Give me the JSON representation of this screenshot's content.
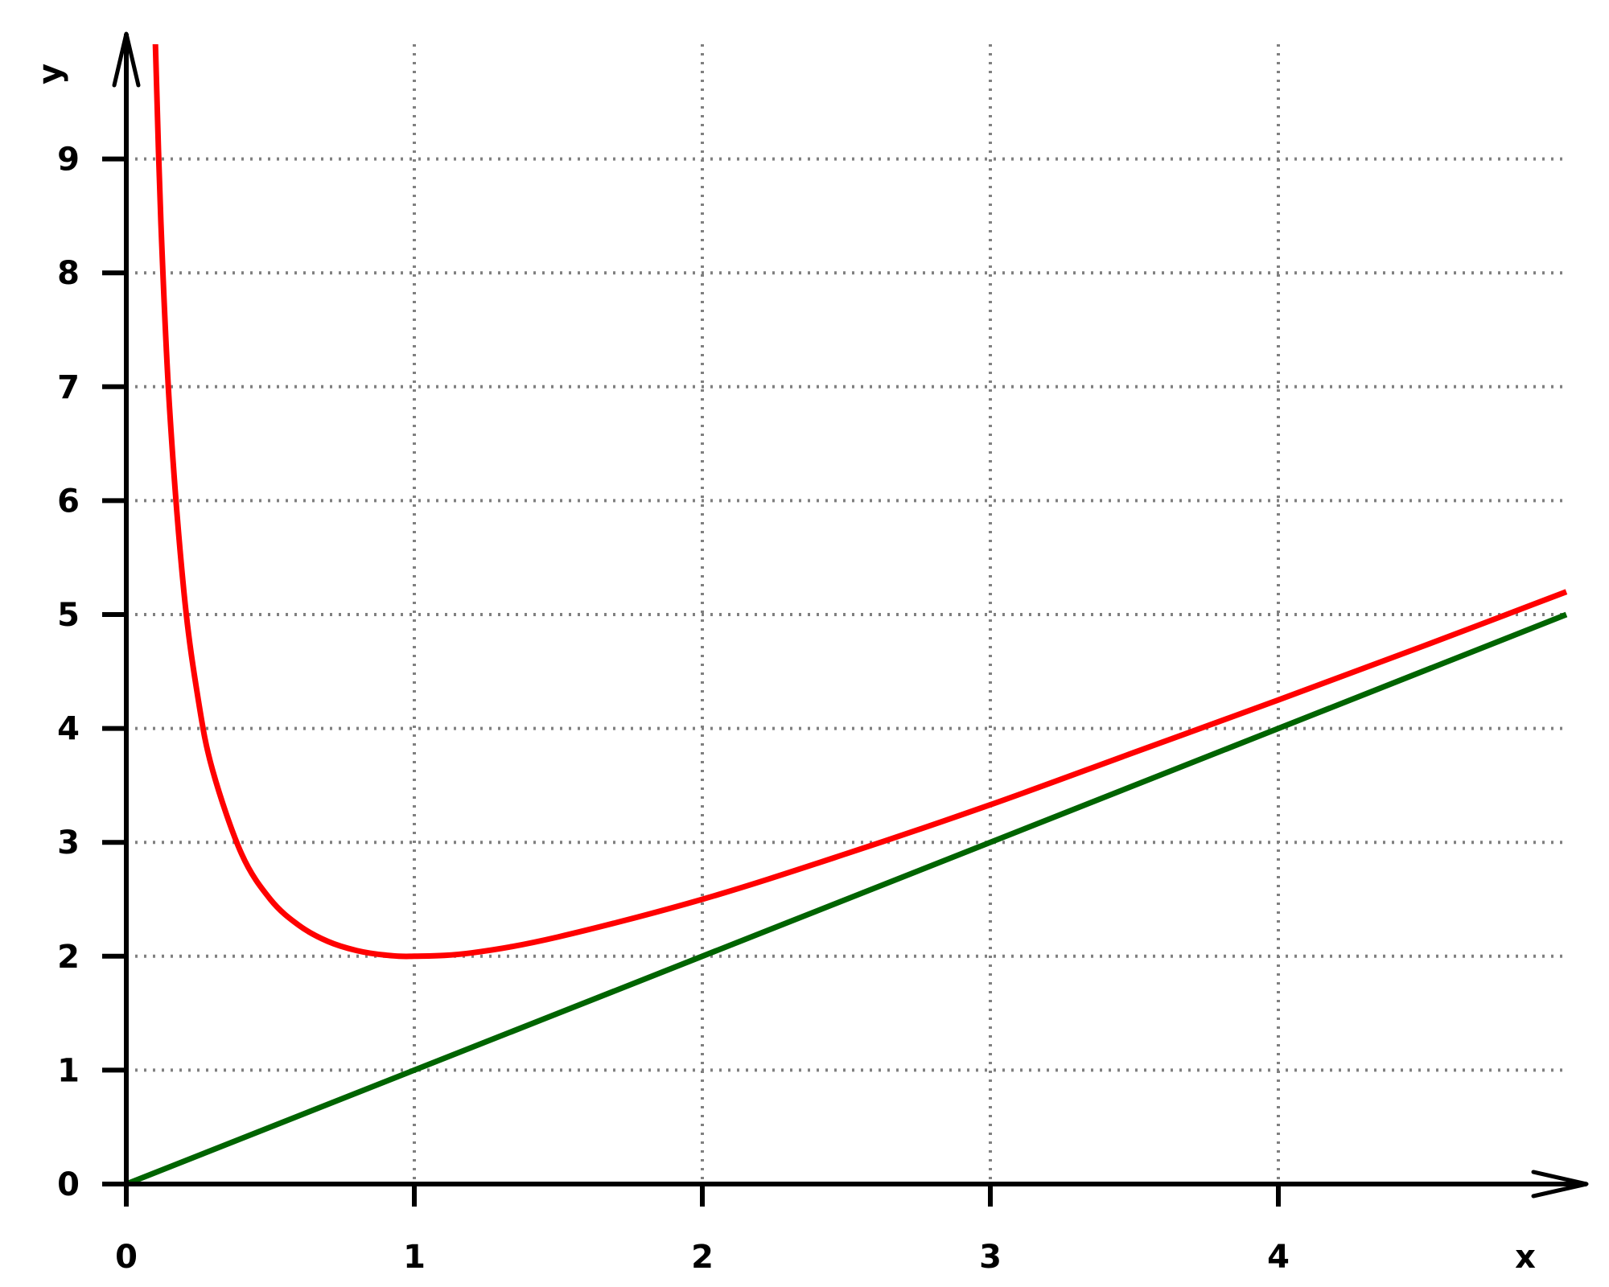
{
  "chart_data": {
    "type": "line",
    "title": "",
    "xlabel": "x",
    "ylabel": "y",
    "xlim": [
      0,
      5.05
    ],
    "ylim": [
      0,
      9.9
    ],
    "grid": true,
    "x_ticks": [
      "0",
      "1",
      "2",
      "3",
      "4"
    ],
    "y_ticks": [
      "0",
      "1",
      "2",
      "3",
      "4",
      "5",
      "6",
      "7",
      "8",
      "9"
    ],
    "series": [
      {
        "color": "#ff0000",
        "x": [
          0.1,
          0.12,
          0.15,
          0.2,
          0.25,
          0.3,
          0.4,
          0.5,
          0.6,
          0.7,
          0.8,
          0.9,
          1.0,
          1.2,
          1.5,
          2.0,
          2.5,
          3.0,
          3.5,
          4.0,
          4.5,
          5.0
        ],
        "y": [
          10.1,
          8.45,
          6.82,
          5.2,
          4.25,
          3.63,
          2.9,
          2.5,
          2.27,
          2.13,
          2.05,
          2.01,
          2.0,
          2.03,
          2.17,
          2.5,
          2.9,
          3.33,
          3.79,
          4.25,
          4.72,
          5.2
        ]
      },
      {
        "color": "#006400",
        "x": [
          0,
          5.0
        ],
        "y": [
          0,
          5.0
        ]
      }
    ]
  }
}
